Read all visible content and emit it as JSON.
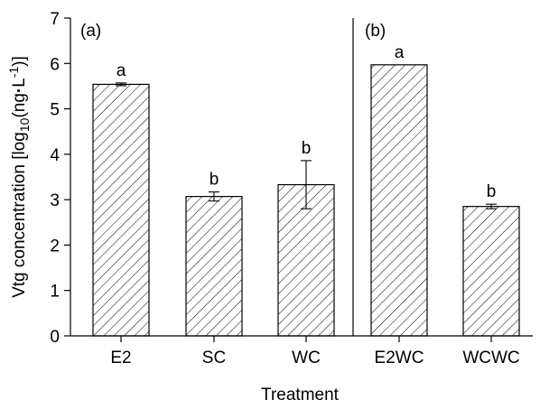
{
  "chart_data": {
    "type": "bar",
    "xlabel": "Treatment",
    "ylabel_parts": {
      "main": "Vtg concentration [log",
      "sub": "10",
      "paren_open": "(ng",
      "dot": "·",
      "unit": "L",
      "sup": "-1",
      "close": ")]"
    },
    "ylim": [
      0,
      7
    ],
    "yticks": [
      "0",
      "1",
      "2",
      "3",
      "4",
      "5",
      "6",
      "7"
    ],
    "panels": [
      {
        "label": "(a)"
      },
      {
        "label": "(b)"
      }
    ],
    "categories": [
      "E2",
      "SC",
      "WC",
      "E2WC",
      "WCWC"
    ],
    "values": [
      5.54,
      3.07,
      3.33,
      5.97,
      2.85
    ],
    "errors": [
      0.03,
      0.1,
      0.53,
      0.0,
      0.05
    ],
    "significance": [
      "a",
      "b",
      "b",
      "a",
      "b"
    ],
    "fill_pattern": "diagonal-hatch",
    "grid": false
  }
}
